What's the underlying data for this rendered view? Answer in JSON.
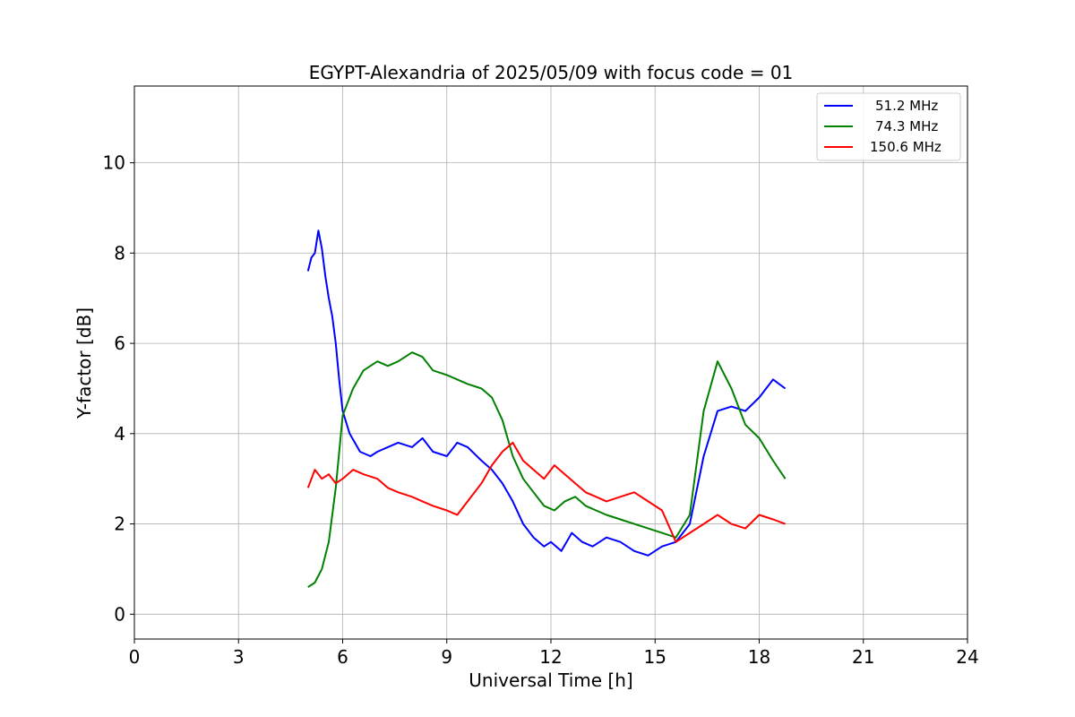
{
  "chart_data": {
    "type": "line",
    "title": "EGYPT-Alexandria of 2025/05/09 with focus code = 01",
    "xlabel": "Universal Time [h]",
    "ylabel": "Y-factor [dB]",
    "xlim": [
      0,
      24
    ],
    "ylim": [
      -0.55,
      11.7
    ],
    "xticks": [
      0,
      3,
      6,
      9,
      12,
      15,
      18,
      21,
      24
    ],
    "xtick_labels": [
      "0",
      "3",
      "6",
      "9",
      "12",
      "15",
      "18",
      "21",
      "24"
    ],
    "yticks": [
      0,
      2,
      4,
      6,
      8,
      10
    ],
    "ytick_labels": [
      "0",
      "2",
      "4",
      "6",
      "8",
      "10"
    ],
    "grid": true,
    "legend_position": "top-right",
    "series": [
      {
        "name": "51.2 MHz",
        "color": "#0000ff",
        "x": [
          5.0,
          5.1,
          5.2,
          5.3,
          5.4,
          5.5,
          5.6,
          5.7,
          5.8,
          5.9,
          6.0,
          6.2,
          6.5,
          6.8,
          7.0,
          7.3,
          7.6,
          8.0,
          8.3,
          8.6,
          9.0,
          9.3,
          9.6,
          10.0,
          10.3,
          10.6,
          10.9,
          11.2,
          11.5,
          11.8,
          12.0,
          12.3,
          12.6,
          12.9,
          13.2,
          13.6,
          14.0,
          14.4,
          14.8,
          15.2,
          15.6,
          16.0,
          16.4,
          16.8,
          17.2,
          17.6,
          18.0,
          18.4,
          18.75
        ],
        "y": [
          7.6,
          7.9,
          8.0,
          8.5,
          8.1,
          7.5,
          7.0,
          6.6,
          6.0,
          5.2,
          4.5,
          4.0,
          3.6,
          3.5,
          3.6,
          3.7,
          3.8,
          3.7,
          3.9,
          3.6,
          3.5,
          3.8,
          3.7,
          3.4,
          3.2,
          2.9,
          2.5,
          2.0,
          1.7,
          1.5,
          1.6,
          1.4,
          1.8,
          1.6,
          1.5,
          1.7,
          1.6,
          1.4,
          1.3,
          1.5,
          1.6,
          2.0,
          3.5,
          4.5,
          4.6,
          4.5,
          4.8,
          5.2,
          5.0
        ]
      },
      {
        "name": "74.3 MHz",
        "color": "#008000",
        "x": [
          5.0,
          5.2,
          5.4,
          5.6,
          5.8,
          6.0,
          6.3,
          6.6,
          7.0,
          7.3,
          7.6,
          8.0,
          8.3,
          8.6,
          9.0,
          9.3,
          9.6,
          10.0,
          10.3,
          10.6,
          10.9,
          11.2,
          11.5,
          11.8,
          12.1,
          12.4,
          12.7,
          13.0,
          13.3,
          13.6,
          14.0,
          14.4,
          14.8,
          15.2,
          15.6,
          16.0,
          16.4,
          16.8,
          17.2,
          17.6,
          18.0,
          18.4,
          18.75
        ],
        "y": [
          0.6,
          0.7,
          1.0,
          1.6,
          2.8,
          4.4,
          5.0,
          5.4,
          5.6,
          5.5,
          5.6,
          5.8,
          5.7,
          5.4,
          5.3,
          5.2,
          5.1,
          5.0,
          4.8,
          4.3,
          3.5,
          3.0,
          2.7,
          2.4,
          2.3,
          2.5,
          2.6,
          2.4,
          2.3,
          2.2,
          2.1,
          2.0,
          1.9,
          1.8,
          1.7,
          2.2,
          4.5,
          5.6,
          5.0,
          4.2,
          3.9,
          3.4,
          3.0
        ]
      },
      {
        "name": "150.6 MHz",
        "color": "#ff0000",
        "x": [
          5.0,
          5.2,
          5.4,
          5.6,
          5.8,
          6.0,
          6.3,
          6.6,
          7.0,
          7.3,
          7.6,
          8.0,
          8.3,
          8.6,
          9.0,
          9.3,
          9.6,
          10.0,
          10.3,
          10.6,
          10.9,
          11.2,
          11.5,
          11.8,
          12.1,
          12.4,
          12.7,
          13.0,
          13.3,
          13.6,
          14.0,
          14.4,
          14.8,
          15.2,
          15.6,
          16.0,
          16.4,
          16.8,
          17.2,
          17.6,
          18.0,
          18.4,
          18.75
        ],
        "y": [
          2.8,
          3.2,
          3.0,
          3.1,
          2.9,
          3.0,
          3.2,
          3.1,
          3.0,
          2.8,
          2.7,
          2.6,
          2.5,
          2.4,
          2.3,
          2.2,
          2.5,
          2.9,
          3.3,
          3.6,
          3.8,
          3.4,
          3.2,
          3.0,
          3.3,
          3.1,
          2.9,
          2.7,
          2.6,
          2.5,
          2.6,
          2.7,
          2.5,
          2.3,
          1.6,
          1.8,
          2.0,
          2.2,
          2.0,
          1.9,
          2.2,
          2.1,
          2.0
        ]
      }
    ]
  }
}
